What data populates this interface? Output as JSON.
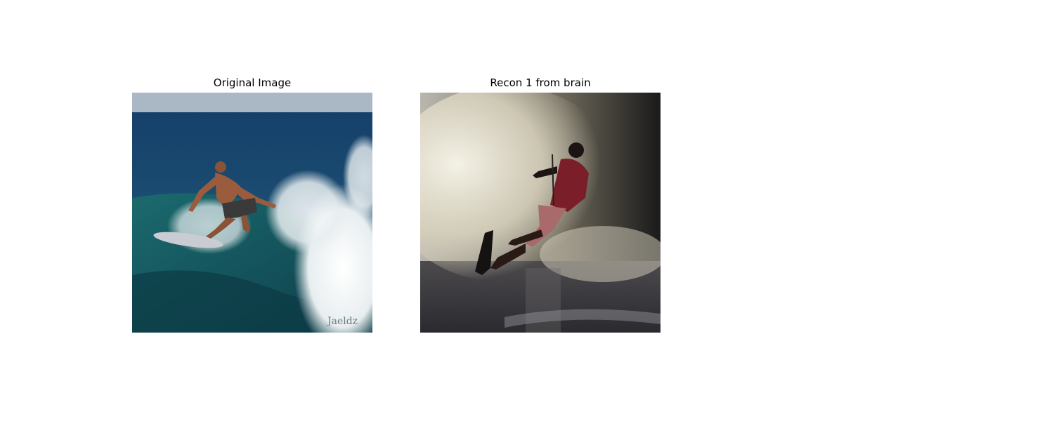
{
  "panels": [
    {
      "title": "Original Image",
      "scene": "surfer-on-wave",
      "watermark": "Jaeldz"
    },
    {
      "title": "Recon 1 from brain",
      "scene": "water-skier-spray"
    }
  ]
}
